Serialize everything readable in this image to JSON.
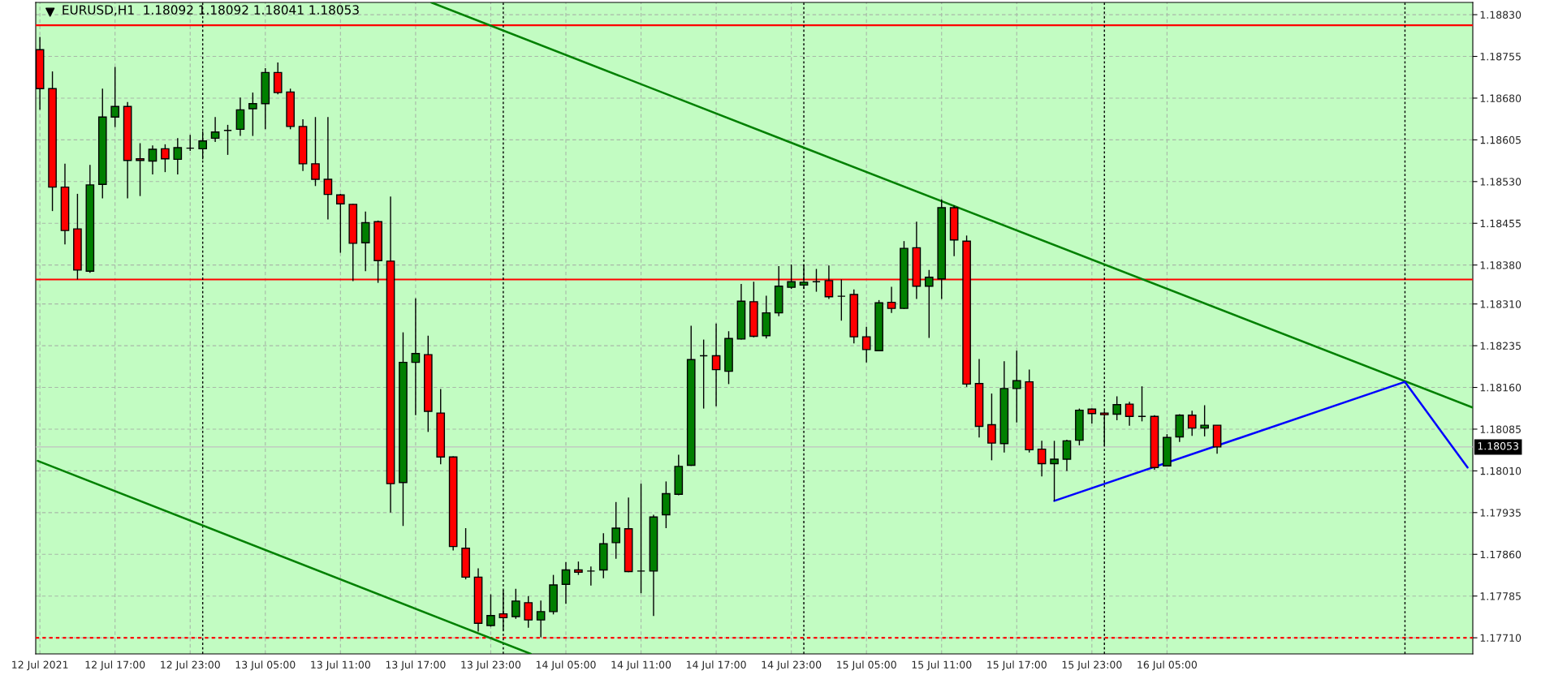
{
  "chart_data": {
    "type": "candlestick",
    "title": "EURUSD,H1  1.18092 1.18092 1.18041 1.18053",
    "x": [
      "2021-07-12T11:00",
      "2021-07-12T12:00",
      "2021-07-12T13:00",
      "2021-07-12T14:00",
      "2021-07-12T15:00",
      "2021-07-12T16:00",
      "2021-07-12T17:00",
      "2021-07-12T18:00",
      "2021-07-12T19:00",
      "2021-07-12T20:00",
      "2021-07-12T21:00",
      "2021-07-12T22:00",
      "2021-07-12T23:00",
      "2021-07-13T00:00",
      "2021-07-13T01:00",
      "2021-07-13T02:00",
      "2021-07-13T03:00",
      "2021-07-13T04:00",
      "2021-07-13T05:00",
      "2021-07-13T06:00",
      "2021-07-13T07:00",
      "2021-07-13T08:00",
      "2021-07-13T09:00",
      "2021-07-13T10:00",
      "2021-07-13T11:00",
      "2021-07-13T12:00",
      "2021-07-13T13:00",
      "2021-07-13T14:00",
      "2021-07-13T15:00",
      "2021-07-13T16:00",
      "2021-07-13T17:00",
      "2021-07-13T18:00",
      "2021-07-13T19:00",
      "2021-07-13T20:00",
      "2021-07-13T21:00",
      "2021-07-13T22:00",
      "2021-07-13T23:00",
      "2021-07-14T00:00",
      "2021-07-14T01:00",
      "2021-07-14T02:00",
      "2021-07-14T03:00",
      "2021-07-14T04:00",
      "2021-07-14T05:00",
      "2021-07-14T06:00",
      "2021-07-14T07:00",
      "2021-07-14T08:00",
      "2021-07-14T09:00",
      "2021-07-14T10:00",
      "2021-07-14T11:00",
      "2021-07-14T12:00",
      "2021-07-14T13:00",
      "2021-07-14T14:00",
      "2021-07-14T15:00",
      "2021-07-14T16:00",
      "2021-07-14T17:00",
      "2021-07-14T18:00",
      "2021-07-14T19:00",
      "2021-07-14T20:00",
      "2021-07-14T21:00",
      "2021-07-14T22:00",
      "2021-07-14T23:00",
      "2021-07-15T00:00",
      "2021-07-15T01:00",
      "2021-07-15T02:00",
      "2021-07-15T03:00",
      "2021-07-15T04:00",
      "2021-07-15T05:00",
      "2021-07-15T06:00",
      "2021-07-15T07:00",
      "2021-07-15T08:00",
      "2021-07-15T09:00",
      "2021-07-15T10:00",
      "2021-07-15T11:00",
      "2021-07-15T12:00",
      "2021-07-15T13:00",
      "2021-07-15T14:00",
      "2021-07-15T15:00",
      "2021-07-15T16:00",
      "2021-07-15T17:00",
      "2021-07-15T18:00",
      "2021-07-15T19:00",
      "2021-07-15T20:00",
      "2021-07-15T21:00",
      "2021-07-15T22:00",
      "2021-07-15T23:00",
      "2021-07-16T00:00",
      "2021-07-16T01:00",
      "2021-07-16T02:00",
      "2021-07-16T03:00",
      "2021-07-16T04:00",
      "2021-07-16T05:00",
      "2021-07-16T06:00",
      "2021-07-16T07:00",
      "2021-07-16T08:00",
      "2021-07-16T09:00"
    ],
    "ohlc": [
      [
        1.18767,
        1.1879,
        1.18659,
        1.18697
      ],
      [
        1.18697,
        1.18728,
        1.18477,
        1.1852
      ],
      [
        1.1852,
        1.18562,
        1.18417,
        1.18442
      ],
      [
        1.18445,
        1.18508,
        1.18354,
        1.18371
      ],
      [
        1.18369,
        1.1856,
        1.18366,
        1.18524
      ],
      [
        1.18525,
        1.18697,
        1.185,
        1.18646
      ],
      [
        1.18646,
        1.18736,
        1.18628,
        1.18665
      ],
      [
        1.18665,
        1.18673,
        1.185,
        1.18568
      ],
      [
        1.18571,
        1.18599,
        1.18504,
        1.18568
      ],
      [
        1.18567,
        1.18595,
        1.18543,
        1.18588
      ],
      [
        1.18589,
        1.18597,
        1.18547,
        1.18571
      ],
      [
        1.1857,
        1.18608,
        1.18543,
        1.18591
      ],
      [
        1.1859,
        1.18614,
        1.18585,
        1.1859
      ],
      [
        1.18589,
        1.1862,
        1.1857,
        1.18603
      ],
      [
        1.18608,
        1.18646,
        1.18601,
        1.18619
      ],
      [
        1.18622,
        1.18632,
        1.18578,
        1.18622
      ],
      [
        1.18624,
        1.18681,
        1.18612,
        1.18659
      ],
      [
        1.18661,
        1.1869,
        1.18612,
        1.1867
      ],
      [
        1.1867,
        1.18734,
        1.18624,
        1.18726
      ],
      [
        1.18726,
        1.18744,
        1.18687,
        1.1869
      ],
      [
        1.18691,
        1.18697,
        1.18624,
        1.18629
      ],
      [
        1.18629,
        1.18642,
        1.18549,
        1.18562
      ],
      [
        1.18562,
        1.18646,
        1.18522,
        1.18534
      ],
      [
        1.18534,
        1.18646,
        1.18462,
        1.18507
      ],
      [
        1.18506,
        1.18508,
        1.18402,
        1.1849
      ],
      [
        1.18489,
        1.1849,
        1.18351,
        1.18419
      ],
      [
        1.1842,
        1.18476,
        1.18369,
        1.18456
      ],
      [
        1.18458,
        1.1846,
        1.18348,
        1.18388
      ],
      [
        1.18387,
        1.18503,
        1.17935,
        1.17987
      ],
      [
        1.17989,
        1.18259,
        1.17911,
        1.18205
      ],
      [
        1.18205,
        1.1832,
        1.1811,
        1.18221
      ],
      [
        1.18219,
        1.18253,
        1.1808,
        1.18117
      ],
      [
        1.18114,
        1.18157,
        1.18022,
        1.18035
      ],
      [
        1.18035,
        1.18036,
        1.17867,
        1.17874
      ],
      [
        1.17871,
        1.17907,
        1.17815,
        1.17819
      ],
      [
        1.17819,
        1.17835,
        1.17721,
        1.17736
      ],
      [
        1.17732,
        1.17788,
        1.1773,
        1.1775
      ],
      [
        1.17753,
        1.17796,
        1.17723,
        1.17746
      ],
      [
        1.17748,
        1.17798,
        1.17744,
        1.17776
      ],
      [
        1.17773,
        1.17785,
        1.17728,
        1.17742
      ],
      [
        1.17742,
        1.17777,
        1.17711,
        1.17757
      ],
      [
        1.17757,
        1.17823,
        1.17752,
        1.17805
      ],
      [
        1.17806,
        1.17846,
        1.17771,
        1.17832
      ],
      [
        1.17832,
        1.17847,
        1.17823,
        1.17828
      ],
      [
        1.1783,
        1.17838,
        1.17804,
        1.1783
      ],
      [
        1.17832,
        1.17898,
        1.17817,
        1.17879
      ],
      [
        1.17881,
        1.17954,
        1.17852,
        1.17907
      ],
      [
        1.17906,
        1.17962,
        1.17828,
        1.17829
      ],
      [
        1.1783,
        1.17987,
        1.1779,
        1.1783
      ],
      [
        1.1783,
        1.17931,
        1.17749,
        1.17927
      ],
      [
        1.17931,
        1.17991,
        1.17907,
        1.17969
      ],
      [
        1.17968,
        1.18039,
        1.17966,
        1.18018
      ],
      [
        1.1802,
        1.18271,
        1.18019,
        1.1821
      ],
      [
        1.18217,
        1.18246,
        1.18122,
        1.18217
      ],
      [
        1.18217,
        1.18275,
        1.18126,
        1.18192
      ],
      [
        1.18189,
        1.18261,
        1.18166,
        1.18248
      ],
      [
        1.18247,
        1.18346,
        1.18246,
        1.18315
      ],
      [
        1.18314,
        1.1835,
        1.1825,
        1.18252
      ],
      [
        1.18253,
        1.18325,
        1.18248,
        1.18294
      ],
      [
        1.18294,
        1.18378,
        1.18288,
        1.18342
      ],
      [
        1.1834,
        1.18381,
        1.18337,
        1.1835
      ],
      [
        1.18344,
        1.18381,
        1.18337,
        1.18349
      ],
      [
        1.1835,
        1.18373,
        1.18332,
        1.1835
      ],
      [
        1.18352,
        1.18379,
        1.18319,
        1.18323
      ],
      [
        1.18324,
        1.18354,
        1.1828,
        1.18324
      ],
      [
        1.18327,
        1.18336,
        1.18239,
        1.18251
      ],
      [
        1.18251,
        1.18269,
        1.18205,
        1.18228
      ],
      [
        1.18226,
        1.18317,
        1.18225,
        1.18312
      ],
      [
        1.18313,
        1.18341,
        1.18294,
        1.18302
      ],
      [
        1.18302,
        1.18423,
        1.18301,
        1.1841
      ],
      [
        1.18411,
        1.18458,
        1.18319,
        1.18342
      ],
      [
        1.18342,
        1.18371,
        1.18249,
        1.18358
      ],
      [
        1.18355,
        1.18498,
        1.18319,
        1.18483
      ],
      [
        1.18483,
        1.18487,
        1.18396,
        1.18425
      ],
      [
        1.18423,
        1.18433,
        1.18161,
        1.18166
      ],
      [
        1.18167,
        1.18211,
        1.1807,
        1.1809
      ],
      [
        1.18093,
        1.18149,
        1.18029,
        1.1806
      ],
      [
        1.18059,
        1.18207,
        1.18043,
        1.18158
      ],
      [
        1.18158,
        1.18226,
        1.18097,
        1.18172
      ],
      [
        1.1817,
        1.18192,
        1.18043,
        1.18048
      ],
      [
        1.18049,
        1.18064,
        1.18,
        1.18023
      ],
      [
        1.18023,
        1.18064,
        1.17956,
        1.18031
      ],
      [
        1.18031,
        1.18066,
        1.1801,
        1.18064
      ],
      [
        1.18065,
        1.18122,
        1.18056,
        1.18119
      ],
      [
        1.18121,
        1.18122,
        1.18095,
        1.18113
      ],
      [
        1.18114,
        1.18118,
        1.18055,
        1.18111
      ],
      [
        1.18112,
        1.18144,
        1.18101,
        1.18129
      ],
      [
        1.1813,
        1.18134,
        1.18091,
        1.18108
      ],
      [
        1.18108,
        1.18162,
        1.18099,
        1.18108
      ],
      [
        1.18108,
        1.1811,
        1.18012,
        1.18016
      ],
      [
        1.18019,
        1.18076,
        1.18018,
        1.1807
      ],
      [
        1.18071,
        1.18112,
        1.18062,
        1.1811
      ],
      [
        1.1811,
        1.18118,
        1.18073,
        1.18087
      ],
      [
        1.18087,
        1.18128,
        1.18072,
        1.18092
      ],
      [
        1.18092,
        1.18092,
        1.18041,
        1.18053
      ]
    ],
    "colors": [
      "#ff0000",
      "#ff0000",
      "#ff0000",
      "#ff0000",
      "#007f00",
      "#007f00",
      "#007f00",
      "#ff0000",
      "#ff0000",
      "#007f00",
      "#ff0000",
      "#007f00",
      "#000000",
      "#007f00",
      "#007f00",
      "#000000",
      "#007f00",
      "#007f00",
      "#007f00",
      "#ff0000",
      "#ff0000",
      "#ff0000",
      "#ff0000",
      "#ff0000",
      "#ff0000",
      "#ff0000",
      "#007f00",
      "#ff0000",
      "#ff0000",
      "#007f00",
      "#007f00",
      "#ff0000",
      "#ff0000",
      "#ff0000",
      "#ff0000",
      "#ff0000",
      "#007f00",
      "#ff0000",
      "#007f00",
      "#ff0000",
      "#007f00",
      "#007f00",
      "#007f00",
      "#ff0000",
      "#000000",
      "#007f00",
      "#007f00",
      "#ff0000",
      "#000000",
      "#007f00",
      "#007f00",
      "#007f00",
      "#007f00",
      "#000000",
      "#ff0000",
      "#007f00",
      "#007f00",
      "#ff0000",
      "#007f00",
      "#007f00",
      "#007f00",
      "#007f00",
      "#000000",
      "#ff0000",
      "#000000",
      "#ff0000",
      "#ff0000",
      "#007f00",
      "#ff0000",
      "#007f00",
      "#ff0000",
      "#007f00",
      "#007f00",
      "#ff0000",
      "#ff0000",
      "#ff0000",
      "#ff0000",
      "#007f00",
      "#007f00",
      "#ff0000",
      "#ff0000",
      "#007f00",
      "#007f00",
      "#007f00",
      "#ff0000",
      "#ff0000",
      "#007f00",
      "#ff0000",
      "#000000",
      "#ff0000",
      "#007f00",
      "#007f00",
      "#ff0000",
      "#007f00",
      "#ff0000"
    ],
    "series": [
      {
        "type": "line",
        "color": "#008000",
        "x": [
          "2021-07-13T18:15",
          "2021-07-15T00:00",
          "2021-07-17T05:24"
        ],
        "values": [
          1.18852,
          1.18591,
          1.18124
        ]
      },
      {
        "type": "line",
        "color": "#008000",
        "x": [
          "2021-07-12T10:50",
          "2021-07-14T02:12"
        ],
        "values": [
          1.18028,
          1.17681
        ]
      },
      {
        "type": "line",
        "color": "#0000ff",
        "x": [
          "2021-07-15T20:00",
          "2021-07-17T00:00",
          "2021-07-17T05:00"
        ],
        "values": [
          1.17956,
          1.1817,
          1.18016
        ]
      }
    ],
    "ref_lines": [
      {
        "axis": "y",
        "value": 1.18811,
        "label": null,
        "color": "#ff0000",
        "line_style": "solid"
      },
      {
        "axis": "y",
        "value": 1.18354,
        "label": null,
        "color": "#ff0000",
        "line_style": "solid"
      },
      {
        "axis": "y",
        "value": 1.1771,
        "label": null,
        "color": "#ff0000",
        "line_style": "dotted"
      },
      {
        "axis": "y",
        "value": 1.18053,
        "label": "1.18053",
        "color": "#c0c0c0",
        "line_style": "solid"
      },
      {
        "axis": "x",
        "value": "2021-07-13T00:00",
        "label": null,
        "color": "#000000",
        "line_style": "dotted"
      },
      {
        "axis": "x",
        "value": "2021-07-14T00:00",
        "label": null,
        "color": "#000000",
        "line_style": "dotted"
      },
      {
        "axis": "x",
        "value": "2021-07-15T00:00",
        "label": null,
        "color": "#000000",
        "line_style": "dotted"
      },
      {
        "axis": "x",
        "value": "2021-07-16T00:00",
        "label": null,
        "color": "#000000",
        "line_style": "dotted"
      },
      {
        "axis": "x",
        "value": "2021-07-17T00:00",
        "label": null,
        "color": "#000000",
        "line_style": "dotted"
      }
    ],
    "xlim": [
      "2021-07-12T10:40",
      "2021-07-17T05:25"
    ],
    "xticks": [
      {
        "value": "2021-07-12T11:00",
        "label": "12 Jul 2021"
      },
      {
        "value": "2021-07-12T17:00",
        "label": "12 Jul 17:00"
      },
      {
        "value": "2021-07-12T23:00",
        "label": "12 Jul 23:00"
      },
      {
        "value": "2021-07-13T05:00",
        "label": "13 Jul 05:00"
      },
      {
        "value": "2021-07-13T11:00",
        "label": "13 Jul 11:00"
      },
      {
        "value": "2021-07-13T17:00",
        "label": "13 Jul 17:00"
      },
      {
        "value": "2021-07-13T23:00",
        "label": "13 Jul 23:00"
      },
      {
        "value": "2021-07-14T05:00",
        "label": "14 Jul 05:00"
      },
      {
        "value": "2021-07-14T11:00",
        "label": "14 Jul 11:00"
      },
      {
        "value": "2021-07-14T17:00",
        "label": "14 Jul 17:00"
      },
      {
        "value": "2021-07-14T23:00",
        "label": "14 Jul 23:00"
      },
      {
        "value": "2021-07-15T05:00",
        "label": "15 Jul 05:00"
      },
      {
        "value": "2021-07-15T11:00",
        "label": "15 Jul 11:00"
      },
      {
        "value": "2021-07-15T17:00",
        "label": "15 Jul 17:00"
      },
      {
        "value": "2021-07-15T23:00",
        "label": "15 Jul 23:00"
      },
      {
        "value": "2021-07-16T05:00",
        "label": "16 Jul 05:00"
      }
    ],
    "ylim": [
      1.17681,
      1.18852
    ],
    "yticks": [
      {
        "value": 1.1883,
        "label": "1.18830"
      },
      {
        "value": 1.18755,
        "label": "1.18755"
      },
      {
        "value": 1.1868,
        "label": "1.18680"
      },
      {
        "value": 1.18605,
        "label": "1.18605"
      },
      {
        "value": 1.1853,
        "label": "1.18530"
      },
      {
        "value": 1.18455,
        "label": "1.18455"
      },
      {
        "value": 1.1838,
        "label": "1.18380"
      },
      {
        "value": 1.1831,
        "label": "1.18310"
      },
      {
        "value": 1.18235,
        "label": "1.18235"
      },
      {
        "value": 1.1816,
        "label": "1.18160"
      },
      {
        "value": 1.18085,
        "label": "1.18085"
      },
      {
        "value": 1.1801,
        "label": "1.18010"
      },
      {
        "value": 1.17935,
        "label": "1.17935"
      },
      {
        "value": 1.1786,
        "label": "1.17860"
      },
      {
        "value": 1.17785,
        "label": "1.17785"
      },
      {
        "value": 1.1771,
        "label": "1.17710"
      }
    ],
    "grid": true,
    "legend": false
  }
}
